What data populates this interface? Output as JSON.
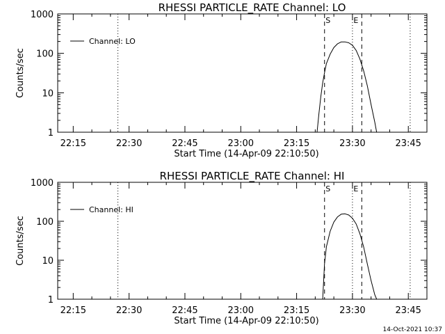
{
  "timestamp": "14-Oct-2021 10:37",
  "chart_data": [
    {
      "type": "line",
      "title": "RHESSI PARTICLE_RATE Channel: LO",
      "xlabel": "Start Time (14-Apr-09 22:10:50)",
      "ylabel": "Counts/sec",
      "y_scale": "log",
      "xlim": [
        "22:10:50",
        "23:50:00"
      ],
      "ylim": [
        1,
        1000
      ],
      "x_ticks": [
        "22:15",
        "22:30",
        "22:45",
        "23:00",
        "23:15",
        "23:30",
        "23:45"
      ],
      "y_ticks": [
        "1",
        "10",
        "100",
        "1000"
      ],
      "legend": {
        "placement": "top-left",
        "label": "Channel: LO"
      },
      "markers": [
        {
          "time": "22:27:00",
          "style": "dotted",
          "label": ""
        },
        {
          "time": "23:22:30",
          "style": "dashed",
          "label": "S"
        },
        {
          "time": "23:30:00",
          "style": "dotted",
          "label": "E"
        },
        {
          "time": "23:32:30",
          "style": "dashed",
          "label": ""
        },
        {
          "time": "23:45:30",
          "style": "dotted",
          "label": ""
        }
      ],
      "series": [
        {
          "x": [
            "23:20:30",
            "23:21:00",
            "23:21:30",
            "23:22:00",
            "23:22:30",
            "23:23:00",
            "23:24:00",
            "23:25:00",
            "23:26:00",
            "23:27:00",
            "23:28:00",
            "23:29:00",
            "23:30:00",
            "23:31:00",
            "23:32:00",
            "23:33:00",
            "23:34:00",
            "23:35:00",
            "23:36:00",
            "23:36:30"
          ],
          "y": [
            1,
            3,
            8,
            18,
            32,
            55,
            95,
            140,
            175,
            195,
            195,
            185,
            160,
            118,
            72,
            36,
            15,
            5,
            1.8,
            1
          ]
        }
      ]
    },
    {
      "type": "line",
      "title": "RHESSI PARTICLE_RATE Channel: HI",
      "xlabel": "Start Time (14-Apr-09 22:10:50)",
      "ylabel": "Counts/sec",
      "y_scale": "log",
      "xlim": [
        "22:10:50",
        "23:50:00"
      ],
      "ylim": [
        1,
        1000
      ],
      "x_ticks": [
        "22:15",
        "22:30",
        "22:45",
        "23:00",
        "23:15",
        "23:30",
        "23:45"
      ],
      "y_ticks": [
        "1",
        "10",
        "100",
        "1000"
      ],
      "legend": {
        "placement": "top-left",
        "label": "Channel: HI"
      },
      "markers": [
        {
          "time": "22:27:00",
          "style": "dotted",
          "label": ""
        },
        {
          "time": "23:22:30",
          "style": "dashed",
          "label": "S"
        },
        {
          "time": "23:30:00",
          "style": "dotted",
          "label": "E"
        },
        {
          "time": "23:32:30",
          "style": "dashed",
          "label": ""
        },
        {
          "time": "23:45:30",
          "style": "dotted",
          "label": ""
        }
      ],
      "series": [
        {
          "x": [
            "23:22:00",
            "23:22:30",
            "23:23:00",
            "23:24:00",
            "23:25:00",
            "23:26:00",
            "23:27:00",
            "23:28:00",
            "23:29:00",
            "23:30:00",
            "23:31:00",
            "23:32:00",
            "23:33:00",
            "23:34:00",
            "23:35:00",
            "23:36:00",
            "23:36:30"
          ],
          "y": [
            1,
            8,
            22,
            55,
            95,
            130,
            152,
            155,
            145,
            120,
            85,
            48,
            22,
            8,
            3,
            1.3,
            1
          ]
        }
      ]
    }
  ]
}
